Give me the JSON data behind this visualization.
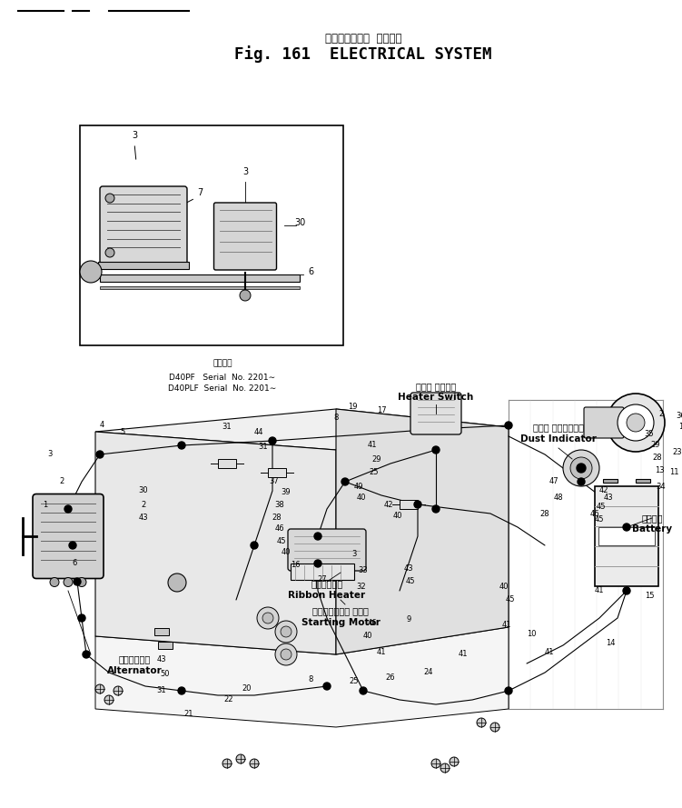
{
  "fig_width": 7.51,
  "fig_height": 8.89,
  "dpi": 100,
  "bg_color": "#ffffff",
  "title_jp": "エレクトリカル  システム",
  "title_en": "Fig. 161  ELECTRICAL SYSTEM",
  "serial_jp": "適用号機",
  "serial_line1": "D40PF   Serial  No. 2201∼",
  "serial_line2": "D40PLF  Serial  No. 2201∼",
  "heater_switch_jp": "ヒータ スイッチ",
  "heater_switch_en": "Heater Switch",
  "dust_indicator_jp": "ダスト インジケータ",
  "dust_indicator_en": "Dust Indicator",
  "battery_jp": "バッテリ",
  "battery_en": "Battery",
  "ribbon_heater_jp": "リボンヒータ",
  "ribbon_heater_en": "Ribbon Heater",
  "starting_motor_jp": "スターティング モータ",
  "starting_motor_en": "Starting Motor",
  "alternator_jp": "オルタネータ",
  "alternator_en": "Alternator"
}
